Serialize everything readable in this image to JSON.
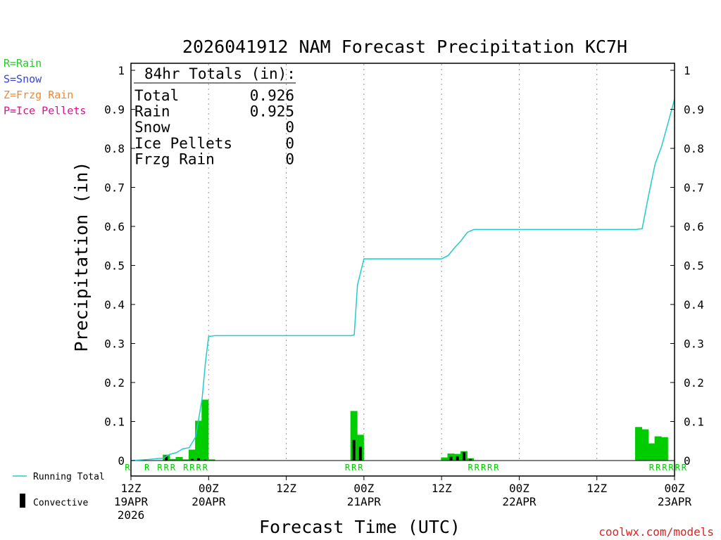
{
  "chart_data": {
    "type": "bar",
    "title": "2026041912 NAM Forecast Precipitation KC7H",
    "xlabel": "Forecast Time (UTC)",
    "ylabel": "Precipitation (in)",
    "ylim": [
      0,
      1
    ],
    "y_ticks": [
      "0",
      "0.1",
      "0.2",
      "0.3",
      "0.4",
      "0.5",
      "0.6",
      "0.7",
      "0.8",
      "0.9",
      "1"
    ],
    "x_range_hours": [
      0,
      84
    ],
    "x_ticks": [
      {
        "hour": 0,
        "top": "12Z",
        "mid": "19APR",
        "bottom": "2026"
      },
      {
        "hour": 12,
        "top": "00Z",
        "mid": "20APR",
        "bottom": ""
      },
      {
        "hour": 24,
        "top": "12Z",
        "mid": "",
        "bottom": ""
      },
      {
        "hour": 36,
        "top": "00Z",
        "mid": "21APR",
        "bottom": ""
      },
      {
        "hour": 48,
        "top": "12Z",
        "mid": "",
        "bottom": ""
      },
      {
        "hour": 60,
        "top": "00Z",
        "mid": "22APR",
        "bottom": ""
      },
      {
        "hour": 72,
        "top": "12Z",
        "mid": "",
        "bottom": ""
      },
      {
        "hour": 84,
        "top": "00Z",
        "mid": "23APR",
        "bottom": ""
      }
    ],
    "precip_bars": {
      "hours": [
        6,
        7,
        8,
        9,
        10,
        11,
        12,
        13,
        35,
        36,
        49,
        50,
        51,
        52,
        53,
        79,
        80,
        81,
        82,
        83
      ],
      "total": [
        0.015,
        0.004,
        0.009,
        0.003,
        0.028,
        0.102,
        0.156,
        0.003,
        0.127,
        0.066,
        0.008,
        0.018,
        0.017,
        0.024,
        0.006,
        0.086,
        0.08,
        0.044,
        0.062,
        0.06
      ],
      "convective": [
        0.012,
        0.0,
        0.0,
        0.0,
        0.004,
        0.006,
        0.002,
        0.0,
        0.053,
        0.036,
        0.0,
        0.01,
        0.011,
        0.022,
        0.004,
        0.001,
        0.001,
        0.001,
        0.001,
        0.001
      ]
    },
    "running_total": {
      "hours": [
        0,
        1,
        2,
        3,
        4,
        5,
        6,
        7,
        8,
        9,
        10,
        10.5,
        11,
        11.5,
        12,
        13,
        14,
        15,
        20,
        25,
        30,
        34,
        34.5,
        35,
        36,
        37,
        40,
        45,
        48,
        49,
        50,
        51,
        52,
        53,
        55,
        60,
        70,
        78,
        79,
        80,
        81,
        82,
        83,
        84
      ],
      "values": [
        0,
        0.001,
        0.002,
        0.003,
        0.005,
        0.006,
        0.016,
        0.02,
        0.03,
        0.033,
        0.061,
        0.11,
        0.16,
        0.25,
        0.318,
        0.32,
        0.32,
        0.32,
        0.32,
        0.32,
        0.32,
        0.32,
        0.322,
        0.45,
        0.517,
        0.517,
        0.517,
        0.517,
        0.517,
        0.525,
        0.545,
        0.563,
        0.585,
        0.592,
        0.592,
        0.592,
        0.592,
        0.592,
        0.594,
        0.68,
        0.76,
        0.805,
        0.865,
        0.926
      ]
    },
    "ptype_labels": [
      "R",
      "",
      "",
      "R",
      "",
      "R",
      "R",
      "R",
      "",
      "R",
      "R",
      "R",
      "R",
      "",
      "",
      "",
      "",
      "",
      "",
      "",
      "",
      "",
      "",
      "",
      "",
      "",
      "",
      "",
      "",
      "",
      "",
      "",
      "",
      "",
      "R",
      "R",
      "R",
      "",
      "",
      "",
      "",
      "",
      "",
      "",
      "",
      "",
      "",
      "",
      "",
      "",
      "",
      "",
      "",
      "R",
      "R",
      "R",
      "R",
      "R",
      "",
      "",
      "",
      "",
      "",
      "",
      "",
      "",
      "",
      "",
      "",
      "",
      "",
      "",
      "",
      "",
      "",
      "",
      "",
      "",
      "",
      "",
      "",
      "R",
      "R",
      "R",
      "R",
      "R",
      "R"
    ],
    "totals_box": {
      "header": "84hr Totals (in):",
      "rows": [
        {
          "label": "Total",
          "value": "0.926"
        },
        {
          "label": "Rain",
          "value": "0.925"
        },
        {
          "label": "Snow",
          "value": "0"
        },
        {
          "label": "Ice Pellets",
          "value": "0"
        },
        {
          "label": "Frzg Rain",
          "value": "0"
        }
      ]
    },
    "ptype_legend": [
      {
        "text": "R=Rain",
        "color": "#22cc22"
      },
      {
        "text": "S=Snow",
        "color": "#3344dd"
      },
      {
        "text": "Z=Frzg Rain",
        "color": "#ee8833"
      },
      {
        "text": "P=Ice Pellets",
        "color": "#dd1188"
      }
    ],
    "series_legend": {
      "running_total": "Running Total",
      "convective": "Convective"
    },
    "colors": {
      "total_bar": "#00cc00",
      "convective_bar": "#000000",
      "running_total_line": "#22cccc",
      "rain_label": "#00cc00",
      "grid": "#999999"
    },
    "grid": "vertical dotted at 12-hour intervals"
  },
  "credit": "coolwx.com/models"
}
